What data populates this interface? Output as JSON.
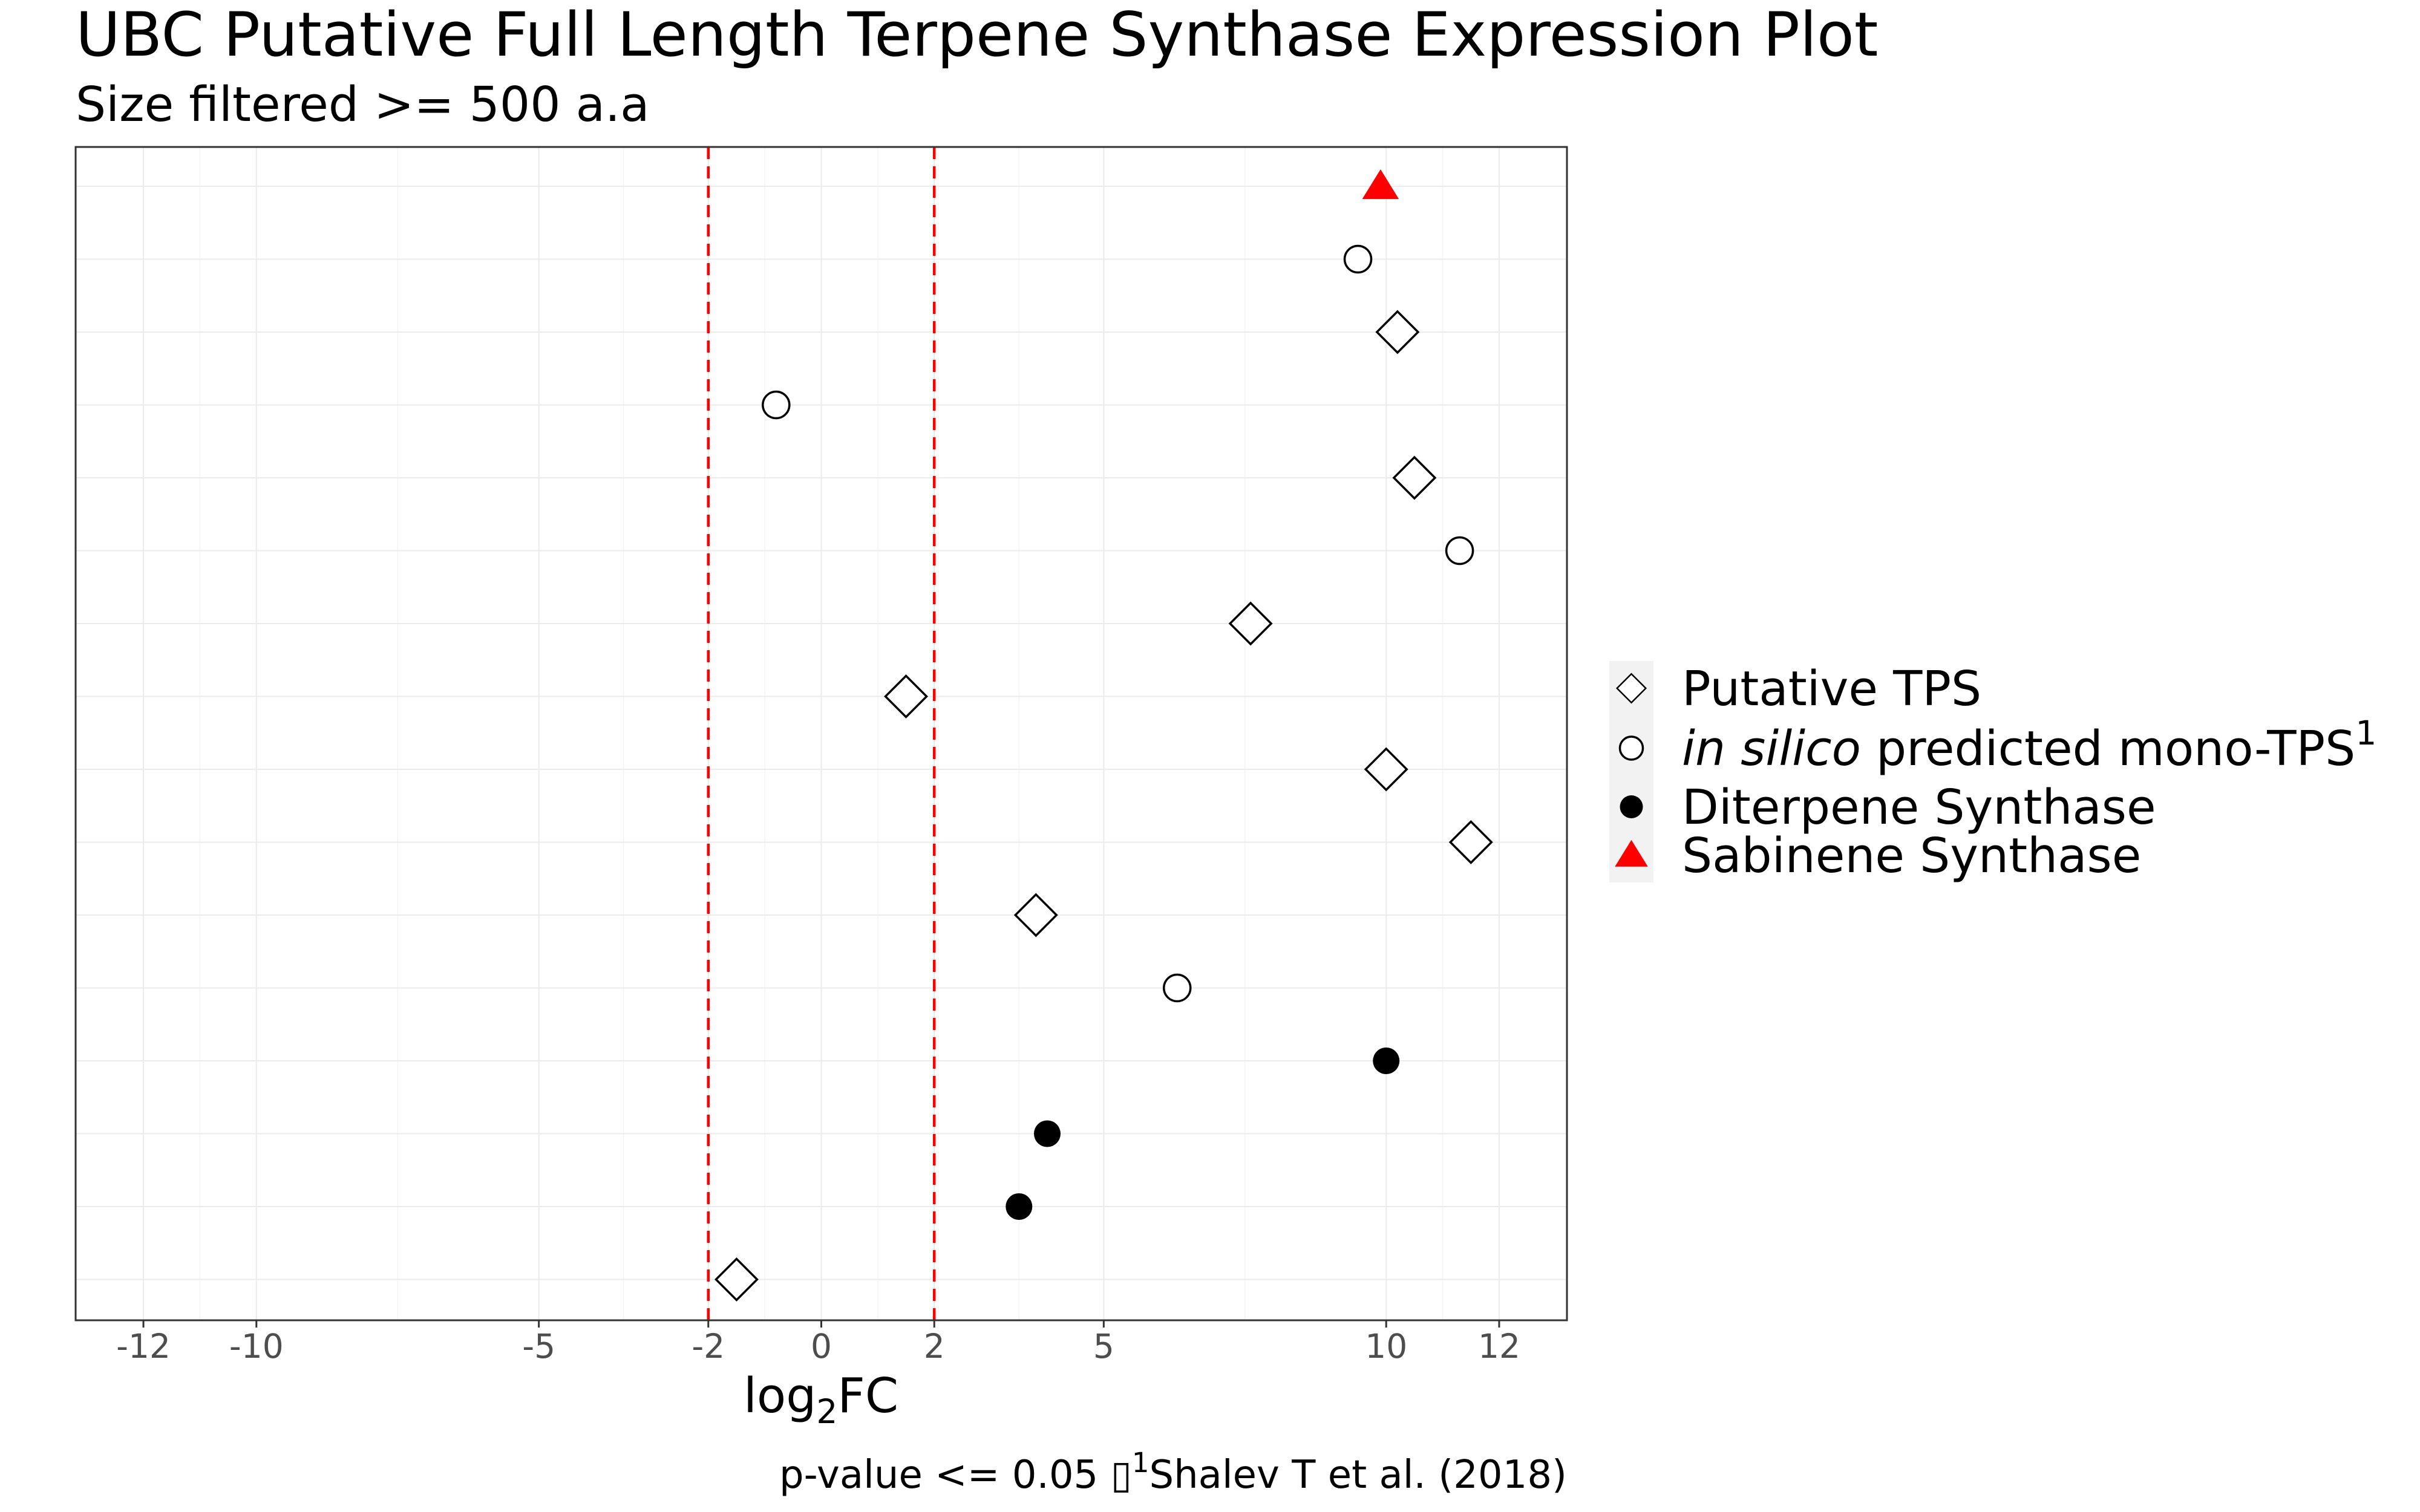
{
  "chart_data": {
    "type": "scatter",
    "title": "UBC Putative Full Length Terpene Synthase Expression Plot",
    "subtitle": "Size filtered >= 500 a.a",
    "xlabel": "log",
    "xlabel_sub": "2",
    "xlabel_suffix": "FC",
    "ylabel": "",
    "xlim": [
      -13.2,
      13.2
    ],
    "x_ticks": [
      {
        "value": -12,
        "label": "-12"
      },
      {
        "value": -10,
        "label": "-10"
      },
      {
        "value": -5,
        "label": "-5"
      },
      {
        "value": -2,
        "label": "-2"
      },
      {
        "value": 0,
        "label": "0"
      },
      {
        "value": 2,
        "label": "2"
      },
      {
        "value": 5,
        "label": "5"
      },
      {
        "value": 10,
        "label": "10"
      },
      {
        "value": 12,
        "label": "12"
      }
    ],
    "threshold_lines": [
      -2,
      2
    ],
    "threshold_color": "#ff0000",
    "grid": true,
    "legend_position": "right",
    "rows": 16,
    "series": [
      {
        "name": "Putative TPS",
        "marker": "open-diamond",
        "color": "#000000",
        "points": [
          {
            "x": 10.2,
            "row": 3
          },
          {
            "x": 10.5,
            "row": 5
          },
          {
            "x": 7.6,
            "row": 7
          },
          {
            "x": 1.5,
            "row": 8
          },
          {
            "x": 10.0,
            "row": 9
          },
          {
            "x": 11.5,
            "row": 10
          },
          {
            "x": 3.8,
            "row": 11
          },
          {
            "x": -1.5,
            "row": 16
          }
        ]
      },
      {
        "name_italic": "in silico",
        "name": " predicted mono-TPS",
        "name_sup": "1",
        "marker": "open-circle",
        "color": "#000000",
        "points": [
          {
            "x": 9.5,
            "row": 2
          },
          {
            "x": -0.8,
            "row": 4
          },
          {
            "x": 11.3,
            "row": 6
          },
          {
            "x": 6.3,
            "row": 12
          }
        ]
      },
      {
        "name": "Diterpene Synthase",
        "marker": "filled-circle",
        "color": "#000000",
        "points": [
          {
            "x": 10.0,
            "row": 13
          },
          {
            "x": 4.0,
            "row": 14
          },
          {
            "x": 3.5,
            "row": 15
          }
        ]
      },
      {
        "name": "Sabinene Synthase",
        "marker": "filled-triangle",
        "color": "#ff0000",
        "points": [
          {
            "x": 9.9,
            "row": 1
          }
        ]
      }
    ],
    "caption": "p-value <= 0.05 ",
    "caption_glyph": "▯",
    "caption_sup": "1",
    "caption_ref": "Shalev T et al. (2018)"
  }
}
